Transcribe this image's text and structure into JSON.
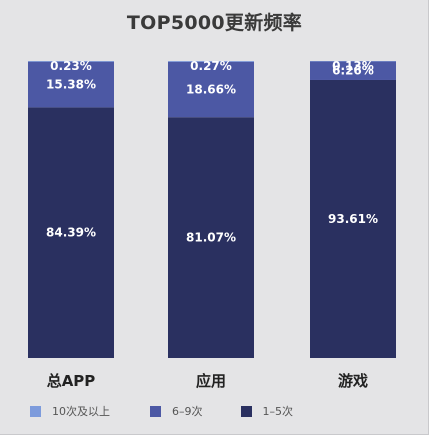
{
  "chart_data": {
    "type": "bar",
    "stacked": true,
    "title": "TOP5000更新频率",
    "categories": [
      "总APP",
      "应用",
      "游戏"
    ],
    "series": [
      {
        "name": "1–5次",
        "values": [
          84.39,
          81.07,
          93.61
        ],
        "labels": [
          "84.39%",
          "81.07%",
          "93.61%"
        ],
        "color": "#2a3060"
      },
      {
        "name": "6–9次",
        "values": [
          15.38,
          18.66,
          6.26
        ],
        "labels": [
          "15.38%",
          "18.66%",
          "6.26%"
        ],
        "color": "#4c58a4"
      },
      {
        "name": "10次及以上",
        "values": [
          0.23,
          0.27,
          0.13
        ],
        "labels": [
          "0.23%",
          "0.27%",
          "0.13%"
        ],
        "color": "#7d9bdc"
      }
    ],
    "ylim": [
      0,
      100
    ],
    "legend_position": "bottom-left",
    "grid": false
  }
}
